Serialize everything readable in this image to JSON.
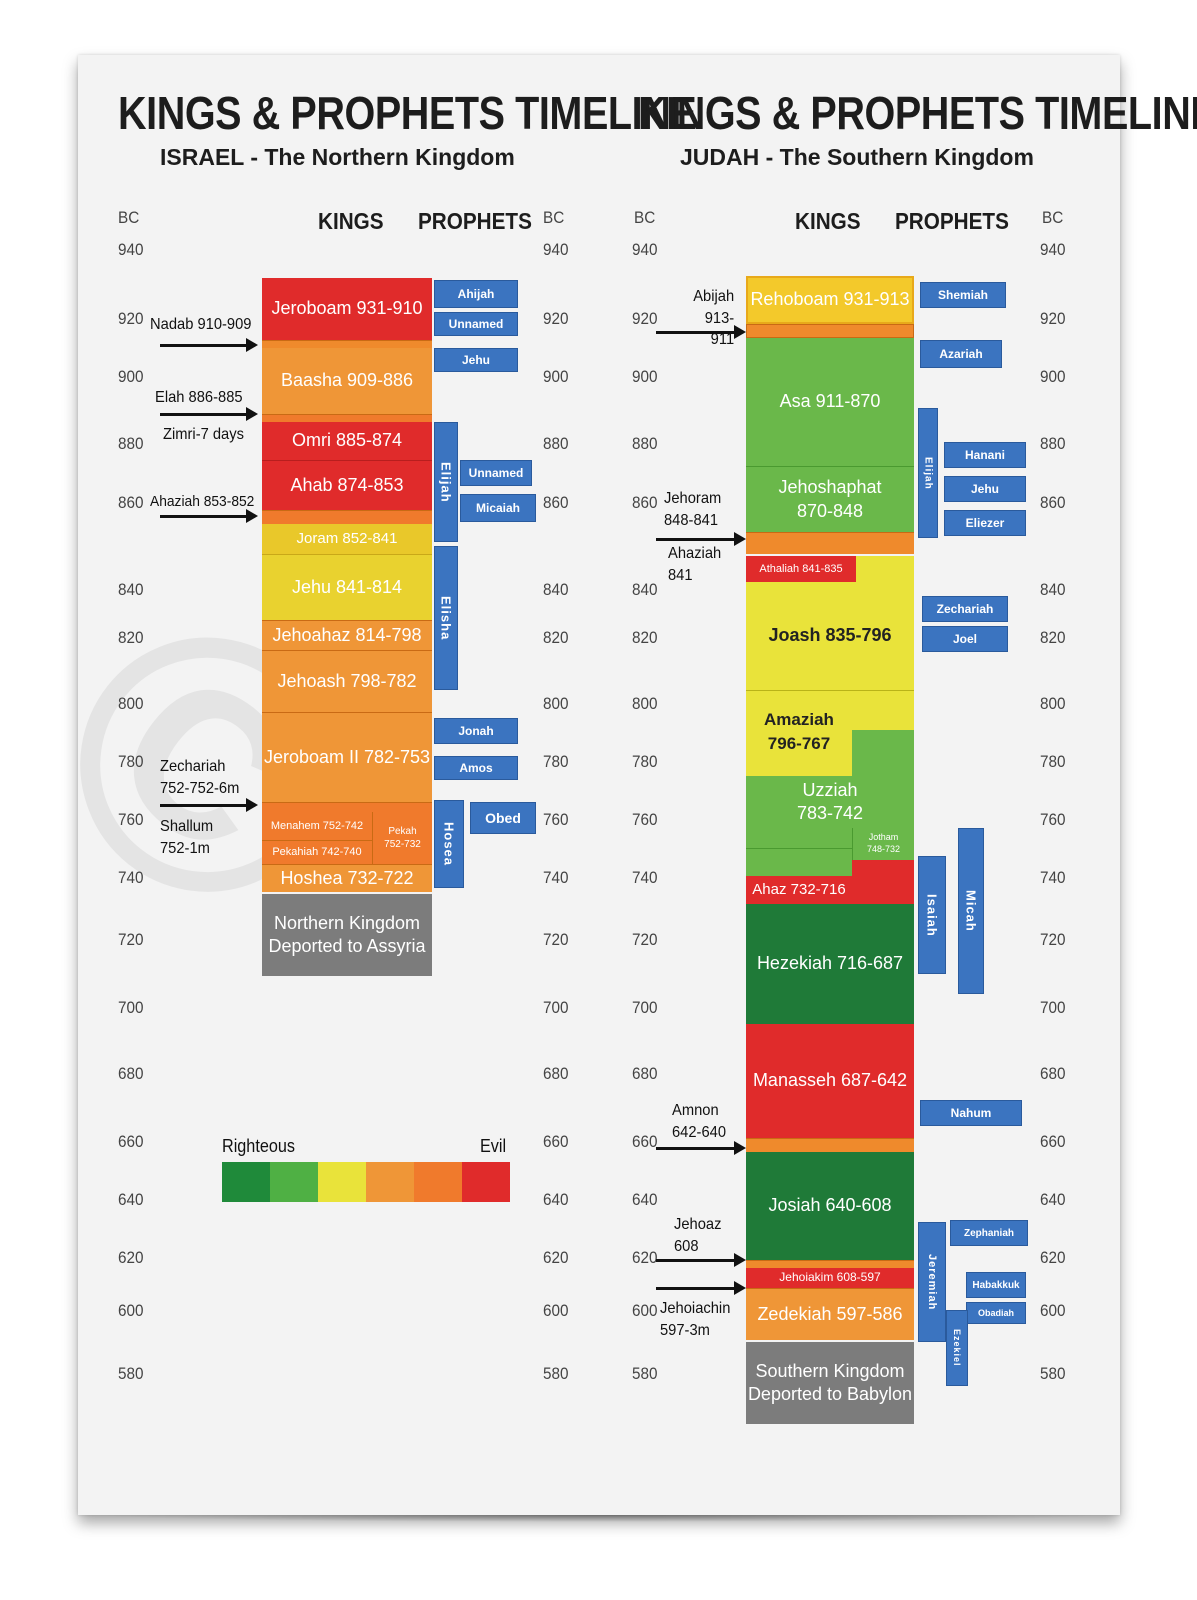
{
  "colors": {
    "righteous_dark": "#1f8a3a",
    "righteous": "#5dba44",
    "neutral": "#e9e33a",
    "mixed": "#ef9637",
    "bad": "#f07a2c",
    "evil": "#e02b2b",
    "deported": "#7c7c7c",
    "prophet_blue": "#3b74c0"
  },
  "left": {
    "title": "KINGS & PROPHETS TIMELINE",
    "subtitle": "ISRAEL - The Northern Kingdom",
    "kings_header": "KINGS",
    "prophets_header": "PROPHETS",
    "bc_label": "BC",
    "ticks": [
      "940",
      "920",
      "900",
      "880",
      "860",
      "840",
      "820",
      "800",
      "780",
      "760",
      "740",
      "720",
      "700",
      "680",
      "660",
      "640",
      "620",
      "600",
      "580"
    ],
    "kings": [
      "Jeroboam 931-910",
      "Baasha 909-886",
      "Omri 885-874",
      "Ahab 874-853",
      "Joram 852-841",
      "Jehu 841-814",
      "Jehoahaz 814-798",
      "Jehoash 798-782",
      "Jeroboam II 782-753",
      "Menahem 752-742",
      "Pekahiah 742-740",
      "Pekah\n752-732",
      "Hoshea 732-722",
      "Northern Kingdom\nDeported to Assyria"
    ],
    "prophets": [
      "Ahijah",
      "Unnamed",
      "Jehu",
      "Elijah",
      "Unnamed",
      "Micaiah",
      "Elisha",
      "Jonah",
      "Amos",
      "Hosea",
      "Obed"
    ],
    "annotations": [
      "Nadab 910-909",
      "Elah 886-885",
      "Zimri-7 days",
      "Ahaziah 853-852",
      "Zechariah\n752-752-6m",
      "Shallum\n752-1m"
    ],
    "legend": {
      "left": "Righteous",
      "right": "Evil"
    }
  },
  "right": {
    "title": "KINGS & PROPHETS TIMELINE",
    "subtitle": "JUDAH - The Southern Kingdom",
    "kings_header": "KINGS",
    "prophets_header": "PROPHETS",
    "bc_label": "BC",
    "ticks": [
      "940",
      "920",
      "900",
      "880",
      "860",
      "840",
      "820",
      "800",
      "780",
      "760",
      "740",
      "720",
      "700",
      "680",
      "660",
      "640",
      "620",
      "600",
      "580"
    ],
    "kings": [
      "Rehoboam 931-913",
      "Asa 911-870",
      "Jehoshaphat\n870-848",
      "Athaliah 841-835",
      "Joash 835-796",
      "Amaziah\n796-767",
      "Uzziah\n783-742",
      "Jotham\n748-732",
      "Ahaz 732-716",
      "Hezekiah 716-687",
      "Manasseh 687-642",
      "Josiah 640-608",
      "Jehoiakim 608-597",
      "Zedekiah 597-586",
      "Southern Kingdom\nDeported to Babylon"
    ],
    "prophets": [
      "Shemiah",
      "Azariah",
      "Elijah",
      "Hanani",
      "Jehu",
      "Eliezer",
      "Zechariah",
      "Joel",
      "Isaiah",
      "Micah",
      "Nahum",
      "Jeremiah",
      "Zephaniah",
      "Habakkuk",
      "Obadiah",
      "Ezekiel"
    ],
    "annotations": [
      "Abijah\n913-911",
      "Jehoram\n848-841",
      "Ahaziah\n841",
      "Amnon\n642-640",
      "Jehoaz\n608",
      "Jehoiachin\n597-3m"
    ]
  }
}
